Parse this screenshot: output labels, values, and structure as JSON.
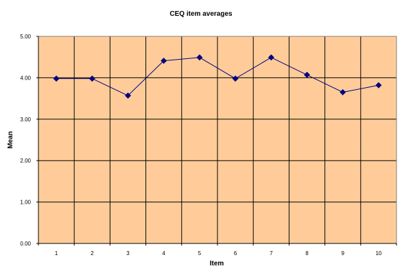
{
  "chart_data": {
    "type": "line",
    "title": "CEQ item averages",
    "xlabel": "Item",
    "ylabel": "Mean",
    "categories": [
      "1",
      "2",
      "3",
      "4",
      "5",
      "6",
      "7",
      "8",
      "9",
      "10"
    ],
    "series": [
      {
        "values": [
          3.98,
          3.98,
          3.57,
          4.41,
          4.49,
          3.98,
          4.49,
          4.07,
          3.65,
          3.82
        ],
        "color": "#000080"
      }
    ],
    "ylim": [
      0,
      5
    ],
    "yticks": [
      "0.00",
      "1.00",
      "2.00",
      "3.00",
      "4.00",
      "5.00"
    ],
    "grid": true,
    "legend": "none",
    "plot_background": "#FFCC99",
    "line_color": "#000080",
    "marker": "diamond"
  }
}
